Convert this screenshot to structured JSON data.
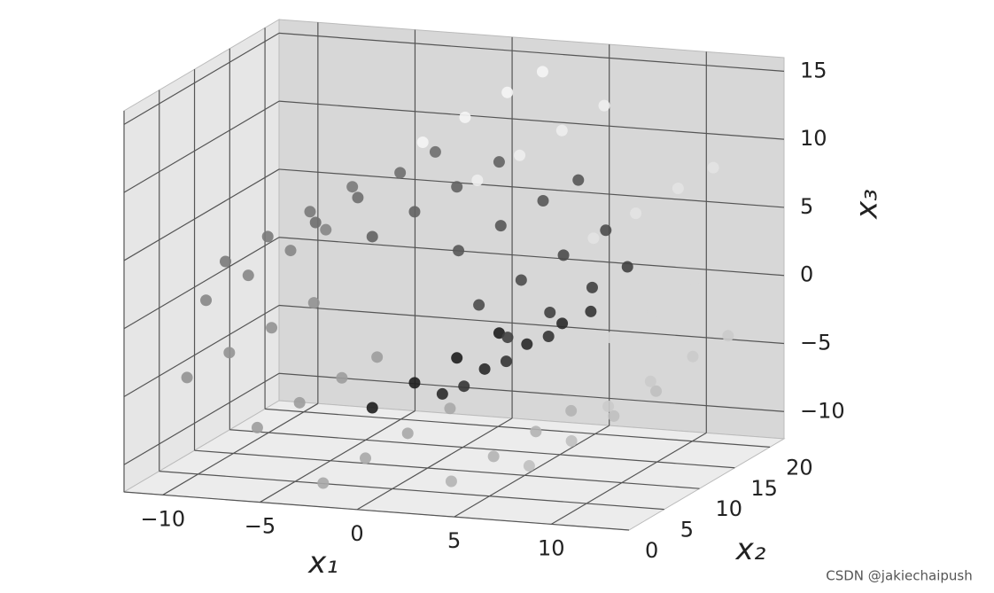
{
  "chart_data": {
    "type": "scatter3d",
    "xlabel": "x₁",
    "ylabel": "x₂",
    "zlabel": "x₃",
    "x": [
      0.42,
      0.42,
      0.42,
      0.42,
      2.94,
      2.94,
      2.94,
      2.94,
      5.14,
      5.14,
      5.14,
      5.14,
      6.3,
      6.3,
      6.3,
      6.3,
      5.91,
      5.91,
      5.91,
      5.91,
      3.77,
      3.77,
      3.77,
      3.77,
      0.42,
      0.42,
      0.42,
      0.42,
      -3.59,
      -3.59,
      -3.59,
      -3.59,
      -7.14,
      -7.14,
      -7.14,
      -7.14,
      -9.23,
      -9.23,
      -9.23,
      -9.23,
      -9.12,
      -9.12,
      -9.12,
      -9.12,
      -6.59,
      -6.59,
      -6.59,
      -6.59,
      -2.11,
      -2.11,
      -2.11,
      -2.11,
      3.4,
      3.4,
      3.4,
      3.4,
      8.5,
      8.5,
      8.5,
      8.5,
      11.48,
      11.48,
      11.48,
      11.48,
      12.69,
      12.69,
      12.69,
      12.69,
      10.72,
      10.72,
      10.72,
      10.72,
      5.83,
      5.83,
      5.83,
      5.83,
      1.93,
      1.93,
      1.93,
      1.93
    ],
    "y": [
      1,
      7,
      13,
      19,
      4,
      10,
      16,
      21,
      1,
      7,
      13,
      19,
      4,
      10,
      16,
      21,
      1,
      7,
      13,
      19,
      4,
      10,
      16,
      21,
      1,
      7,
      13,
      19,
      4,
      10,
      16,
      21,
      1,
      7,
      13,
      19,
      4,
      10,
      16,
      21,
      1,
      7,
      13,
      19,
      4,
      10,
      16,
      21,
      1,
      7,
      13,
      19,
      4,
      10,
      16,
      21,
      1,
      7,
      13,
      19,
      4,
      10,
      16,
      21,
      1,
      7,
      13,
      19,
      4,
      10,
      16,
      21,
      1,
      7,
      13,
      19,
      4,
      10,
      16,
      21
    ],
    "z": [
      -4.78,
      -4.78,
      -4.78,
      -4.78,
      -4.41,
      -4.41,
      -4.41,
      -4.41,
      -2.69,
      -2.69,
      -2.69,
      -2.69,
      0.11,
      0.11,
      0.11,
      0.11,
      3.36,
      3.36,
      3.36,
      3.36,
      6.21,
      6.21,
      6.21,
      6.21,
      7.79,
      7.79,
      7.79,
      7.79,
      7.48,
      7.48,
      7.48,
      7.48,
      5.15,
      5.15,
      5.15,
      5.15,
      1.16,
      1.16,
      1.16,
      1.16,
      -3.59,
      -3.59,
      -3.59,
      -3.59,
      -7.91,
      -7.91,
      -7.91,
      -7.91,
      -10.59,
      -10.59,
      -10.59,
      -10.59,
      -10.78,
      -10.78,
      -10.78,
      -10.78,
      -8.18,
      -8.18,
      -8.18,
      -8.18,
      -4.4,
      -4.4,
      -4.4,
      -4.4,
      1.7,
      1.7,
      1.7,
      1.7,
      7.87,
      7.87,
      7.87,
      7.87,
      12.51,
      12.51,
      12.51,
      12.51,
      13.97,
      13.97,
      13.97,
      13.97
    ],
    "c": [
      4.8,
      4.8,
      4.8,
      4.8,
      5.3,
      5.3,
      5.3,
      5.3,
      5.8,
      5.8,
      5.8,
      5.8,
      6.3,
      6.3,
      6.3,
      6.3,
      6.8,
      6.8,
      6.8,
      6.8,
      7.3,
      7.3,
      7.3,
      7.3,
      7.8,
      7.8,
      7.8,
      7.8,
      8.3,
      8.3,
      8.3,
      8.3,
      8.8,
      8.8,
      8.8,
      8.8,
      9.3,
      9.3,
      9.3,
      9.3,
      9.8,
      9.8,
      9.8,
      9.8,
      10.3,
      10.3,
      10.3,
      10.3,
      10.8,
      10.8,
      10.8,
      10.8,
      11.3,
      11.3,
      11.3,
      11.3,
      11.8,
      11.8,
      11.8,
      11.8,
      12.3,
      12.3,
      12.3,
      12.3,
      12.8,
      12.8,
      12.8,
      12.8,
      13.3,
      13.3,
      13.3,
      13.3,
      13.8,
      13.8,
      13.8,
      13.8,
      14.1,
      14.1,
      14.1,
      14.1
    ],
    "cmap": "gray",
    "xlim": [
      -12,
      14
    ],
    "xticks": [
      {
        "value": -10,
        "label": "−10"
      },
      {
        "value": -5,
        "label": "−5"
      },
      0,
      5,
      10
    ],
    "ylim": [
      0,
      22
    ],
    "yticks": [
      0,
      5,
      10,
      15,
      20
    ],
    "zlim": [
      -12,
      16
    ],
    "zticks": [
      {
        "value": -10,
        "label": "−10"
      },
      {
        "value": -5,
        "label": "−5"
      },
      0,
      5,
      10,
      15
    ],
    "grid": true
  },
  "watermark": "CSDN @jakiechaipush"
}
